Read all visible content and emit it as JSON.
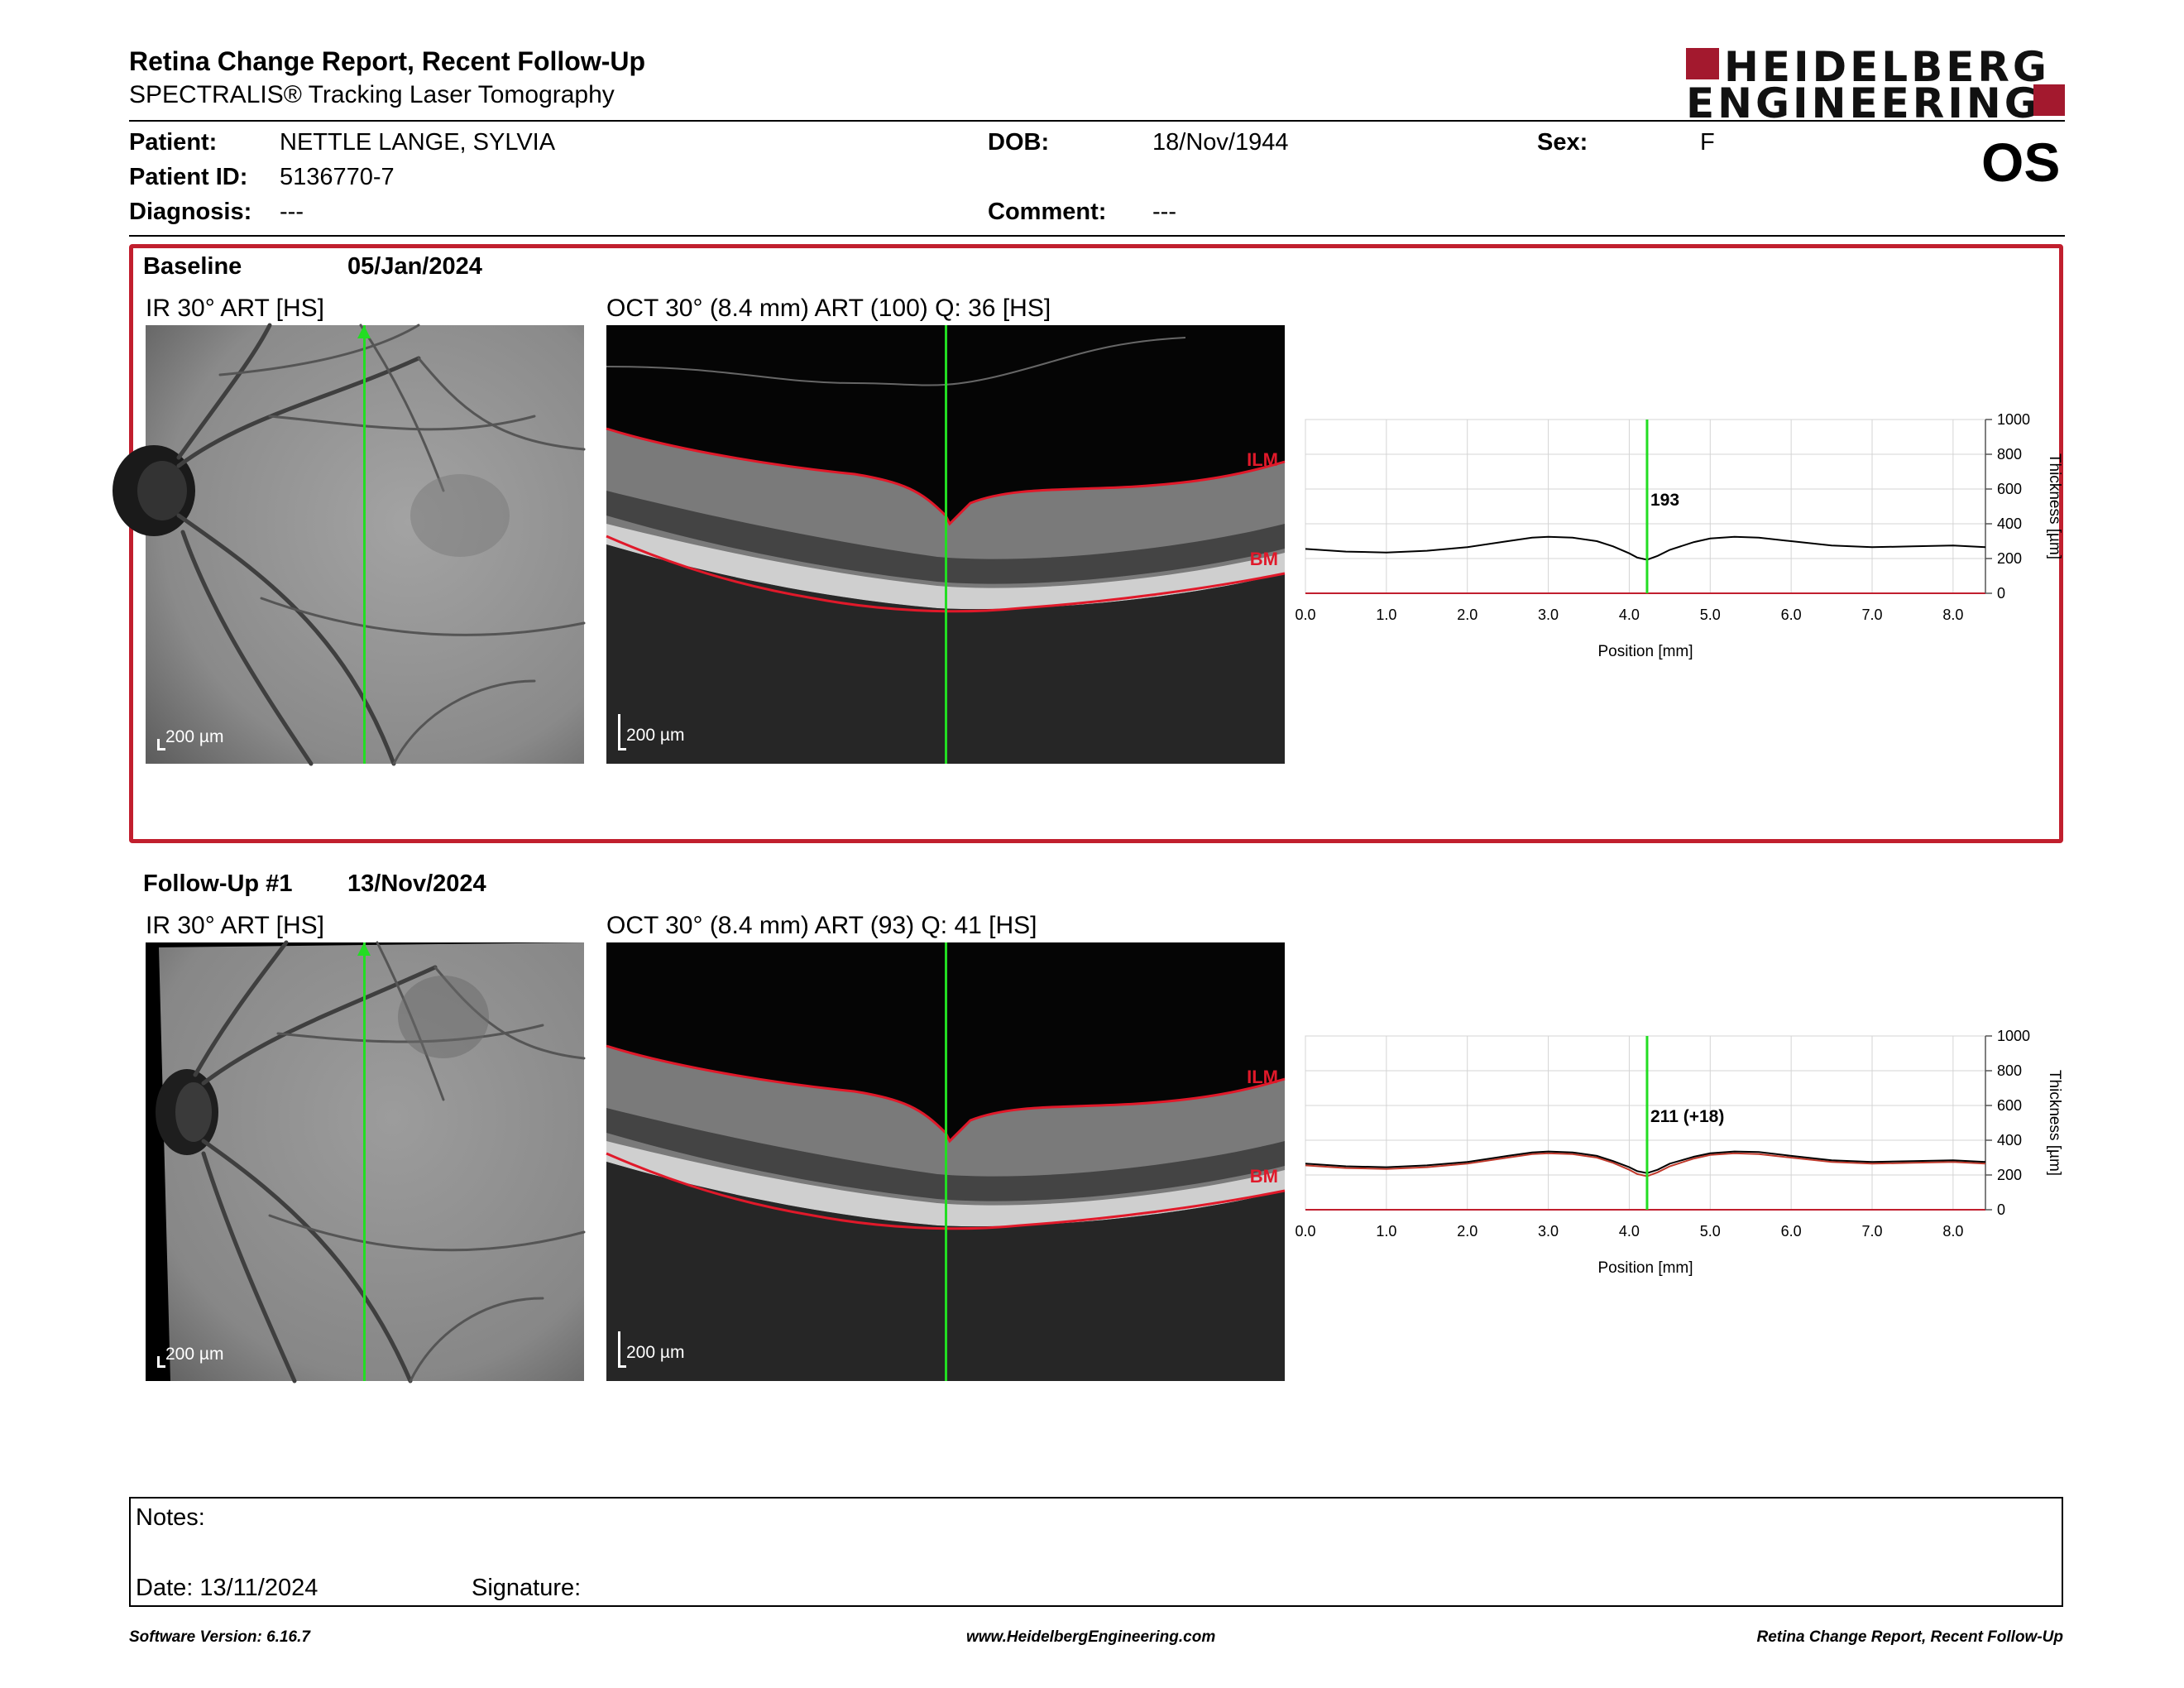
{
  "header": {
    "title": "Retina Change Report, Recent Follow-Up",
    "subtitle": "SPECTRALIS® Tracking Laser Tomography",
    "brand_line1": "HEIDELBERG",
    "brand_line2": "ENGINEERING",
    "eye": "OS"
  },
  "patient": {
    "patient_label": "Patient:",
    "patient_value": "NETTLE LANGE, SYLVIA",
    "id_label": "Patient ID:",
    "id_value": "5136770-7",
    "diagnosis_label": "Diagnosis:",
    "diagnosis_value": "---",
    "dob_label": "DOB:",
    "dob_value": "18/Nov/1944",
    "comment_label": "Comment:",
    "comment_value": "---",
    "sex_label": "Sex:",
    "sex_value": "F"
  },
  "baseline": {
    "label": "Baseline",
    "date": "05/Jan/2024",
    "ir_caption": "IR 30° ART [HS]",
    "oct_caption": "OCT 30° (8.4 mm) ART (100) Q: 36 [HS]",
    "ir_scale": "200 µm",
    "oct_scale": "200 µm",
    "ilm": "ILM",
    "bm": "BM",
    "marker_label": "193"
  },
  "followup": {
    "label": "Follow-Up #1",
    "date": "13/Nov/2024",
    "ir_caption": "IR 30° ART [HS]",
    "oct_caption": "OCT 30° (8.4 mm) ART (93) Q: 41 [HS]",
    "ir_scale": "200 µm",
    "oct_scale": "200 µm",
    "ilm": "ILM",
    "bm": "BM",
    "marker_label": "211 (+18)"
  },
  "chart_data": [
    {
      "type": "line",
      "xlabel": "Position [mm]",
      "ylabel": "Thickness [µm]",
      "xlim": [
        0,
        8.4
      ],
      "ylim": [
        0,
        1000
      ],
      "xticks": [
        "0.0",
        "1.0",
        "2.0",
        "3.0",
        "4.0",
        "5.0",
        "6.0",
        "7.0",
        "8.0"
      ],
      "yticks": [
        "0",
        "200",
        "400",
        "600",
        "800",
        "1000"
      ],
      "grid": true,
      "marker_x": 4.22,
      "series": [
        {
          "x": [
            0,
            0.5,
            1,
            1.5,
            2,
            2.5,
            2.8,
            3,
            3.3,
            3.6,
            3.8,
            4,
            4.1,
            4.22,
            4.35,
            4.5,
            4.8,
            5,
            5.3,
            5.6,
            6,
            6.5,
            7,
            7.5,
            8,
            8.4
          ],
          "values": [
            255,
            240,
            235,
            245,
            265,
            300,
            320,
            325,
            320,
            300,
            270,
            230,
            205,
            193,
            215,
            250,
            295,
            315,
            325,
            320,
            300,
            275,
            265,
            270,
            275,
            265
          ],
          "color": "#000000"
        }
      ]
    },
    {
      "type": "line",
      "xlabel": "Position [mm]",
      "ylabel": "Thickness [µm]",
      "xlim": [
        0,
        8.4
      ],
      "ylim": [
        0,
        1000
      ],
      "xticks": [
        "0.0",
        "1.0",
        "2.0",
        "3.0",
        "4.0",
        "5.0",
        "6.0",
        "7.0",
        "8.0"
      ],
      "yticks": [
        "0",
        "200",
        "400",
        "600",
        "800",
        "1000"
      ],
      "grid": true,
      "marker_x": 4.22,
      "series": [
        {
          "x": [
            0,
            0.5,
            1,
            1.5,
            2,
            2.5,
            2.8,
            3,
            3.3,
            3.6,
            3.8,
            4,
            4.1,
            4.22,
            4.35,
            4.5,
            4.8,
            5,
            5.3,
            5.6,
            6,
            6.5,
            7,
            7.5,
            8,
            8.4
          ],
          "values": [
            265,
            250,
            245,
            255,
            275,
            310,
            330,
            335,
            330,
            310,
            280,
            245,
            222,
            211,
            230,
            265,
            305,
            325,
            335,
            332,
            310,
            285,
            275,
            280,
            285,
            275
          ],
          "color": "#000000"
        },
        {
          "x": [
            0,
            0.5,
            1,
            1.5,
            2,
            2.5,
            2.8,
            3,
            3.3,
            3.6,
            3.8,
            4,
            4.1,
            4.22,
            4.35,
            4.5,
            4.8,
            5,
            5.3,
            5.6,
            6,
            6.5,
            7,
            7.5,
            8,
            8.4
          ],
          "values": [
            255,
            240,
            235,
            245,
            265,
            300,
            320,
            325,
            320,
            300,
            270,
            230,
            205,
            193,
            215,
            250,
            295,
            315,
            325,
            320,
            300,
            275,
            265,
            270,
            275,
            265
          ],
          "color": "#c0392b"
        }
      ]
    }
  ],
  "notes": {
    "notes_label": "Notes:",
    "date_label": "Date: 13/11/2024",
    "signature_label": "Signature:"
  },
  "footer": {
    "software": "Software Version: 6.16.7",
    "website": "www.HeidelbergEngineering.com",
    "report": "Retina Change Report, Recent Follow-Up"
  }
}
